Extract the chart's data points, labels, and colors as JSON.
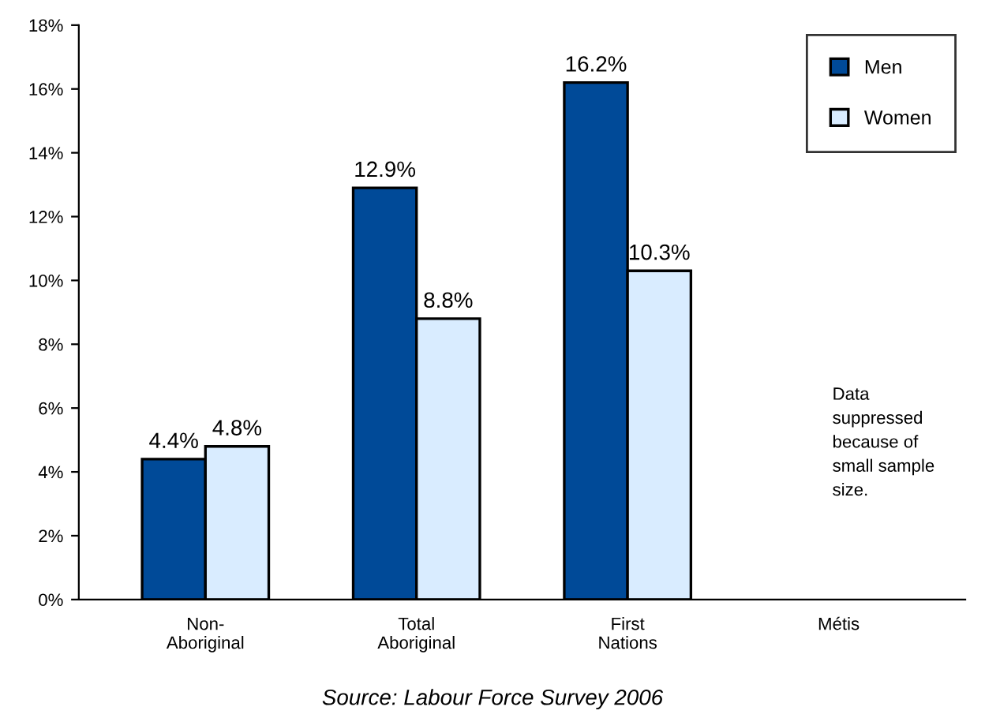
{
  "chart_data": {
    "type": "bar",
    "categories": [
      "Non-\nAboriginal",
      "Total\nAboriginal",
      "First\nNations",
      "Métis"
    ],
    "series": [
      {
        "name": "Men",
        "color": "#004a98",
        "values": [
          4.4,
          12.9,
          16.2,
          null
        ],
        "value_labels": [
          "4.4%",
          "12.9%",
          "16.2%",
          null
        ]
      },
      {
        "name": "Women",
        "color": "#d9ecff",
        "values": [
          4.8,
          8.8,
          10.3,
          null
        ],
        "value_labels": [
          "4.8%",
          "8.8%",
          "10.3%",
          null
        ]
      }
    ],
    "ylim": [
      0,
      18
    ],
    "yticks": [
      {
        "value": 0,
        "label": "0%"
      },
      {
        "value": 2,
        "label": "2%"
      },
      {
        "value": 4,
        "label": "4%"
      },
      {
        "value": 6,
        "label": "6%"
      },
      {
        "value": 8,
        "label": "8%"
      },
      {
        "value": 10,
        "label": "10%"
      },
      {
        "value": 12,
        "label": "12%"
      },
      {
        "value": 14,
        "label": "14%"
      },
      {
        "value": 16,
        "label": "16%"
      },
      {
        "value": 18,
        "label": "18%"
      }
    ],
    "annotations": [
      "Data\nsuppressed\nbecause of\nsmall sample\nsize.",
      "Source: Labour Force Survey 2006"
    ],
    "grid": false,
    "legend": "top right"
  }
}
